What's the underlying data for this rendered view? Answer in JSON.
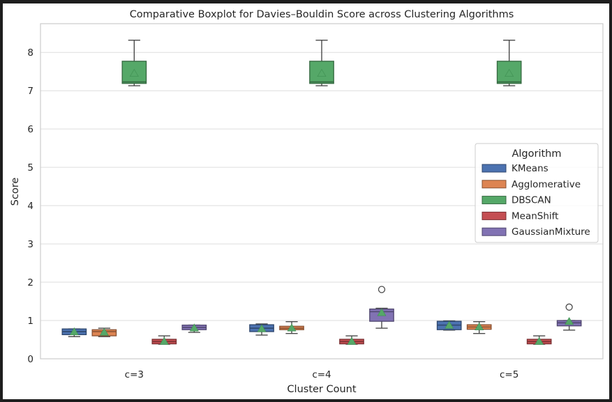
{
  "chart_data": {
    "type": "box",
    "title": "Comparative Boxplot for Davies–Bouldin Score across Clustering Algorithms",
    "xlabel": "Cluster Count",
    "ylabel": "Score",
    "categories": [
      "c=3",
      "c=4",
      "c=5"
    ],
    "ylim": [
      0,
      8.75
    ],
    "yticks": [
      "0",
      "1",
      "2",
      "3",
      "4",
      "5",
      "6",
      "7",
      "8"
    ],
    "grid": true,
    "legend": {
      "title": "Algorithm",
      "placement": "center-right"
    },
    "series": [
      {
        "name": "KMeans",
        "color": "#4c72b0",
        "boxes": [
          {
            "whislo": 0.58,
            "q1": 0.63,
            "med": 0.71,
            "q3": 0.78,
            "whishi": 0.78,
            "mean": 0.7,
            "fliers": []
          },
          {
            "whislo": 0.62,
            "q1": 0.71,
            "med": 0.8,
            "q3": 0.89,
            "whishi": 0.91,
            "mean": 0.78,
            "fliers": []
          },
          {
            "whislo": 0.75,
            "q1": 0.76,
            "med": 0.88,
            "q3": 0.98,
            "whishi": 0.99,
            "mean": 0.87,
            "fliers": []
          }
        ]
      },
      {
        "name": "Agglomerative",
        "color": "#dd8452",
        "boxes": [
          {
            "whislo": 0.58,
            "q1": 0.6,
            "med": 0.71,
            "q3": 0.76,
            "whishi": 0.8,
            "mean": 0.69,
            "fliers": []
          },
          {
            "whislo": 0.66,
            "q1": 0.76,
            "med": 0.8,
            "q3": 0.85,
            "whishi": 0.97,
            "mean": 0.8,
            "fliers": []
          },
          {
            "whislo": 0.66,
            "q1": 0.77,
            "med": 0.83,
            "q3": 0.89,
            "whishi": 0.97,
            "mean": 0.83,
            "fliers": []
          }
        ]
      },
      {
        "name": "DBSCAN",
        "color": "#55a868",
        "boxes": [
          {
            "whislo": 7.13,
            "q1": 7.19,
            "med": 7.23,
            "q3": 7.77,
            "whishi": 8.32,
            "mean": 7.45,
            "fliers": []
          },
          {
            "whislo": 7.13,
            "q1": 7.19,
            "med": 7.23,
            "q3": 7.77,
            "whishi": 8.32,
            "mean": 7.45,
            "fliers": []
          },
          {
            "whislo": 7.13,
            "q1": 7.19,
            "med": 7.23,
            "q3": 7.77,
            "whishi": 8.32,
            "mean": 7.45,
            "fliers": []
          }
        ]
      },
      {
        "name": "MeanShift",
        "color": "#c44e52",
        "boxes": [
          {
            "whislo": 0.38,
            "q1": 0.39,
            "med": 0.45,
            "q3": 0.51,
            "whishi": 0.6,
            "mean": 0.45,
            "fliers": []
          },
          {
            "whislo": 0.38,
            "q1": 0.39,
            "med": 0.45,
            "q3": 0.51,
            "whishi": 0.6,
            "mean": 0.45,
            "fliers": []
          },
          {
            "whislo": 0.38,
            "q1": 0.39,
            "med": 0.45,
            "q3": 0.51,
            "whishi": 0.6,
            "mean": 0.45,
            "fliers": []
          }
        ]
      },
      {
        "name": "GaussianMixture",
        "color": "#8172b3",
        "boxes": [
          {
            "whislo": 0.69,
            "q1": 0.76,
            "med": 0.82,
            "q3": 0.88,
            "whishi": 0.88,
            "mean": 0.8,
            "fliers": []
          },
          {
            "whislo": 0.8,
            "q1": 0.98,
            "med": 1.23,
            "q3": 1.3,
            "whishi": 1.32,
            "mean": 1.2,
            "fliers": [
              1.81
            ]
          },
          {
            "whislo": 0.75,
            "q1": 0.86,
            "med": 0.94,
            "q3": 1.0,
            "whishi": 1.0,
            "mean": 0.97,
            "fliers": [
              1.35
            ]
          }
        ]
      }
    ]
  }
}
